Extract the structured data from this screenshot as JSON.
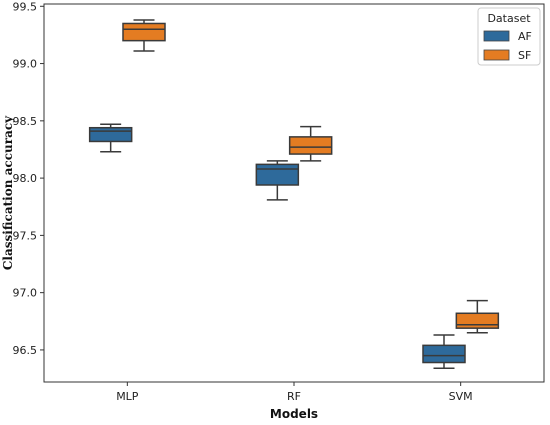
{
  "chart_data": {
    "type": "box",
    "xlabel": "Models",
    "ylabel": "Classification accuracy",
    "categories": [
      "MLP",
      "RF",
      "SVM"
    ],
    "ylim": [
      96.22,
      99.52
    ],
    "yticks": [
      "96.5",
      "97.0",
      "97.5",
      "98.0",
      "98.5",
      "99.0",
      "99.5"
    ],
    "grid": false,
    "legend": {
      "title": "Dataset",
      "position": "top-right",
      "entries": [
        "AF",
        "SF"
      ]
    },
    "series": [
      {
        "name": "AF",
        "color": "#2e6a9b",
        "boxes": [
          {
            "min": 98.23,
            "q1": 98.32,
            "median": 98.41,
            "q3": 98.44,
            "max": 98.47
          },
          {
            "min": 97.81,
            "q1": 97.94,
            "median": 98.08,
            "q3": 98.12,
            "max": 98.15
          },
          {
            "min": 96.34,
            "q1": 96.39,
            "median": 96.45,
            "q3": 96.54,
            "max": 96.63
          }
        ]
      },
      {
        "name": "SF",
        "color": "#e47c22",
        "boxes": [
          {
            "min": 99.11,
            "q1": 99.2,
            "median": 99.3,
            "q3": 99.35,
            "max": 99.38
          },
          {
            "min": 98.15,
            "q1": 98.21,
            "median": 98.27,
            "q3": 98.36,
            "max": 98.45
          },
          {
            "min": 96.65,
            "q1": 96.69,
            "median": 96.72,
            "q3": 96.82,
            "max": 96.93
          }
        ]
      }
    ]
  }
}
